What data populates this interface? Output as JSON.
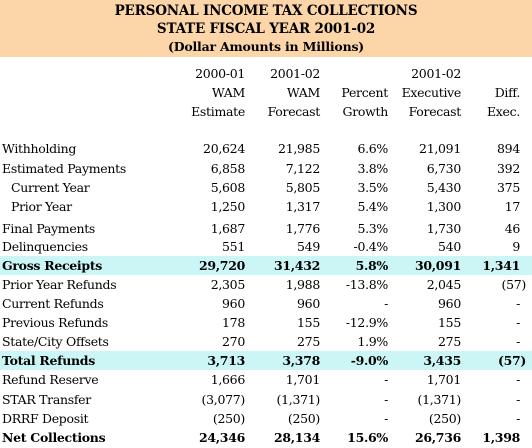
{
  "title": {
    "line1": "PERSONAL INCOME TAX COLLECTIONS",
    "line2": "STATE FISCAL YEAR 2001-02",
    "line3": "(Dollar Amounts in Millions)"
  },
  "columns": [
    {
      "l1": "2000-01",
      "l2": "WAM",
      "l3": "Estimate"
    },
    {
      "l1": "2001-02",
      "l2": "WAM",
      "l3": "Forecast"
    },
    {
      "l1": "",
      "l2": "Percent",
      "l3": "Growth"
    },
    {
      "l1": "2001-02",
      "l2": "Executive",
      "l3": "Forecast"
    },
    {
      "l1": "",
      "l2": "Diff.",
      "l3": "Exec."
    }
  ],
  "rows": [
    {
      "label": "Withholding",
      "v": [
        "20,624",
        "21,985",
        "6.6%",
        "21,091",
        "894"
      ]
    },
    {
      "label": "Estimated Payments",
      "v": [
        "6,858",
        "7,122",
        "3.8%",
        "6,730",
        "392"
      ]
    },
    {
      "label": "Current Year",
      "indent": true,
      "v": [
        "5,608",
        "5,805",
        "3.5%",
        "5,430",
        "375"
      ]
    },
    {
      "label": "Prior Year",
      "indent": true,
      "v": [
        "1,250",
        "1,317",
        "5.4%",
        "1,300",
        "17"
      ]
    },
    {
      "label": "Final Payments",
      "v": [
        "1,687",
        "1,776",
        "5.3%",
        "1,730",
        "46"
      ]
    },
    {
      "label": "Delinquencies",
      "v": [
        "551",
        "549",
        "-0.4%",
        "540",
        "9"
      ]
    },
    {
      "label": "Gross Receipts",
      "bold": true,
      "highlight": true,
      "v": [
        "29,720",
        "31,432",
        "5.8%",
        "30,091",
        "1,341"
      ]
    },
    {
      "label": "Prior Year Refunds",
      "v": [
        "2,305",
        "1,988",
        "-13.8%",
        "2,045",
        "(57)"
      ]
    },
    {
      "label": "Current Refunds",
      "v": [
        "960",
        "960",
        "-",
        "960",
        "-"
      ]
    },
    {
      "label": "Previous Refunds",
      "v": [
        "178",
        "155",
        "-12.9%",
        "155",
        "-"
      ]
    },
    {
      "label": "State/City Offsets",
      "v": [
        "270",
        "275",
        "1.9%",
        "275",
        "-"
      ]
    },
    {
      "label": "Total Refunds",
      "bold": true,
      "highlight": true,
      "v": [
        "3,713",
        "3,378",
        "-9.0%",
        "3,435",
        "(57)"
      ]
    },
    {
      "label": "Refund Reserve",
      "v": [
        "1,666",
        "1,701",
        "-",
        "1,701",
        "-"
      ]
    },
    {
      "label": "STAR Transfer",
      "v": [
        "(3,077)",
        "(1,371)",
        "-",
        "(1,371)",
        "-"
      ]
    },
    {
      "label": "DRRF Deposit",
      "v": [
        "(250)",
        "(250)",
        "-",
        "(250)",
        "-"
      ]
    },
    {
      "label": "Net Collections",
      "bold": true,
      "v": [
        "24,346",
        "28,134",
        "15.6%",
        "26,736",
        "1,398"
      ]
    }
  ],
  "colors": {
    "title_bg": "#fcd5a9",
    "highlight_bg": "#ccf6f6"
  }
}
